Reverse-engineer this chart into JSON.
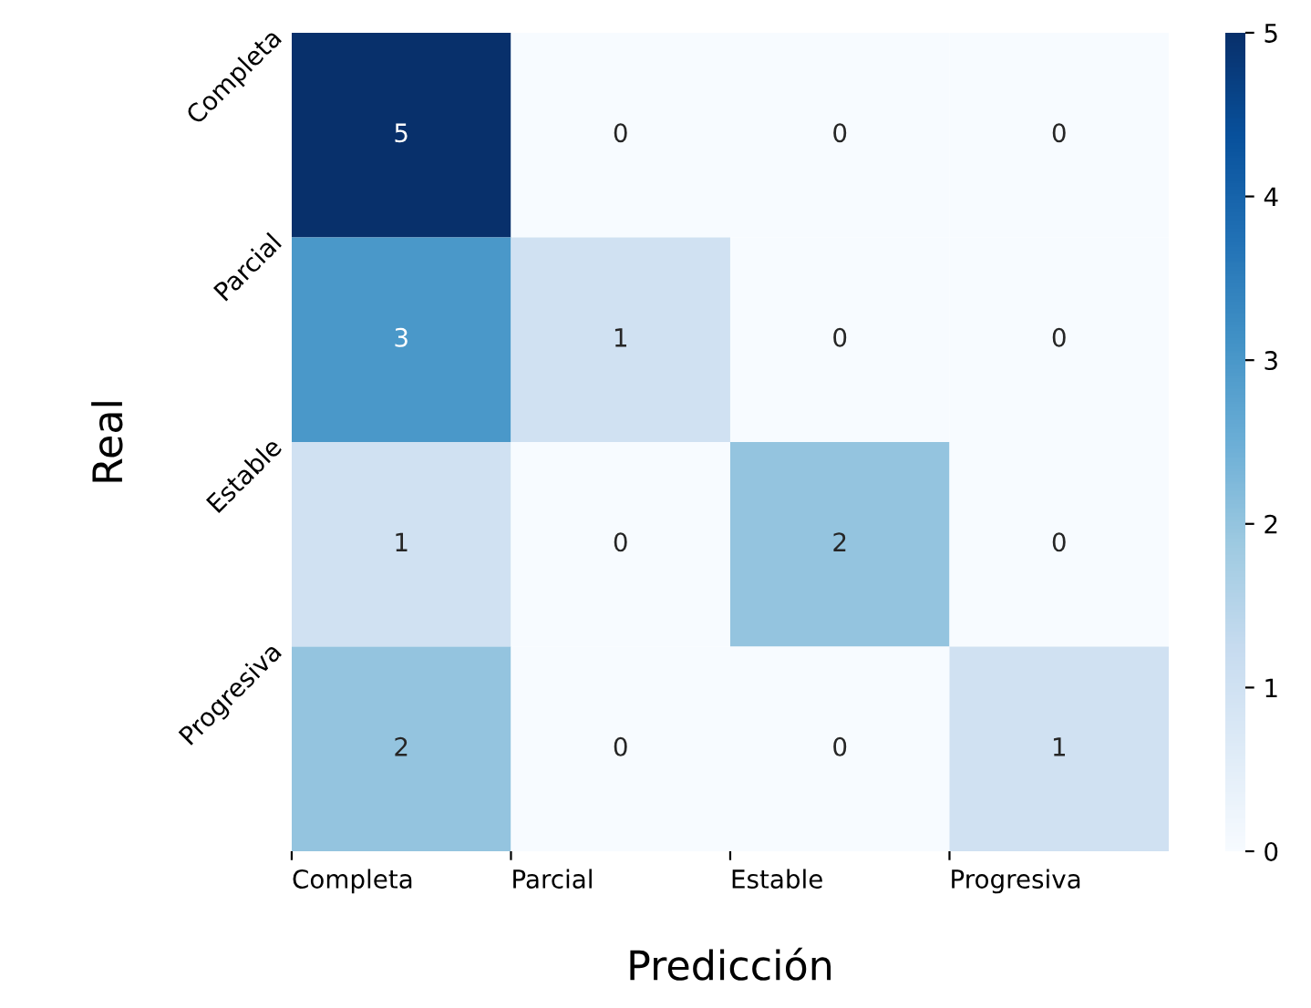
{
  "chart_data": {
    "type": "heatmap",
    "xlabel": "Predicción",
    "ylabel": "Real",
    "categories": [
      "Completa",
      "Parcial",
      "Estable",
      "Progresiva"
    ],
    "y_categories": [
      "Completa",
      "Parcial",
      "Estable",
      "Progresiva"
    ],
    "cells": [
      [
        5,
        0,
        0,
        0
      ],
      [
        3,
        1,
        0,
        0
      ],
      [
        1,
        0,
        2,
        0
      ],
      [
        2,
        0,
        0,
        1
      ]
    ],
    "data_labels": true,
    "clim": [
      0,
      5
    ],
    "cticks": [
      0,
      1,
      2,
      3,
      4,
      5
    ]
  }
}
